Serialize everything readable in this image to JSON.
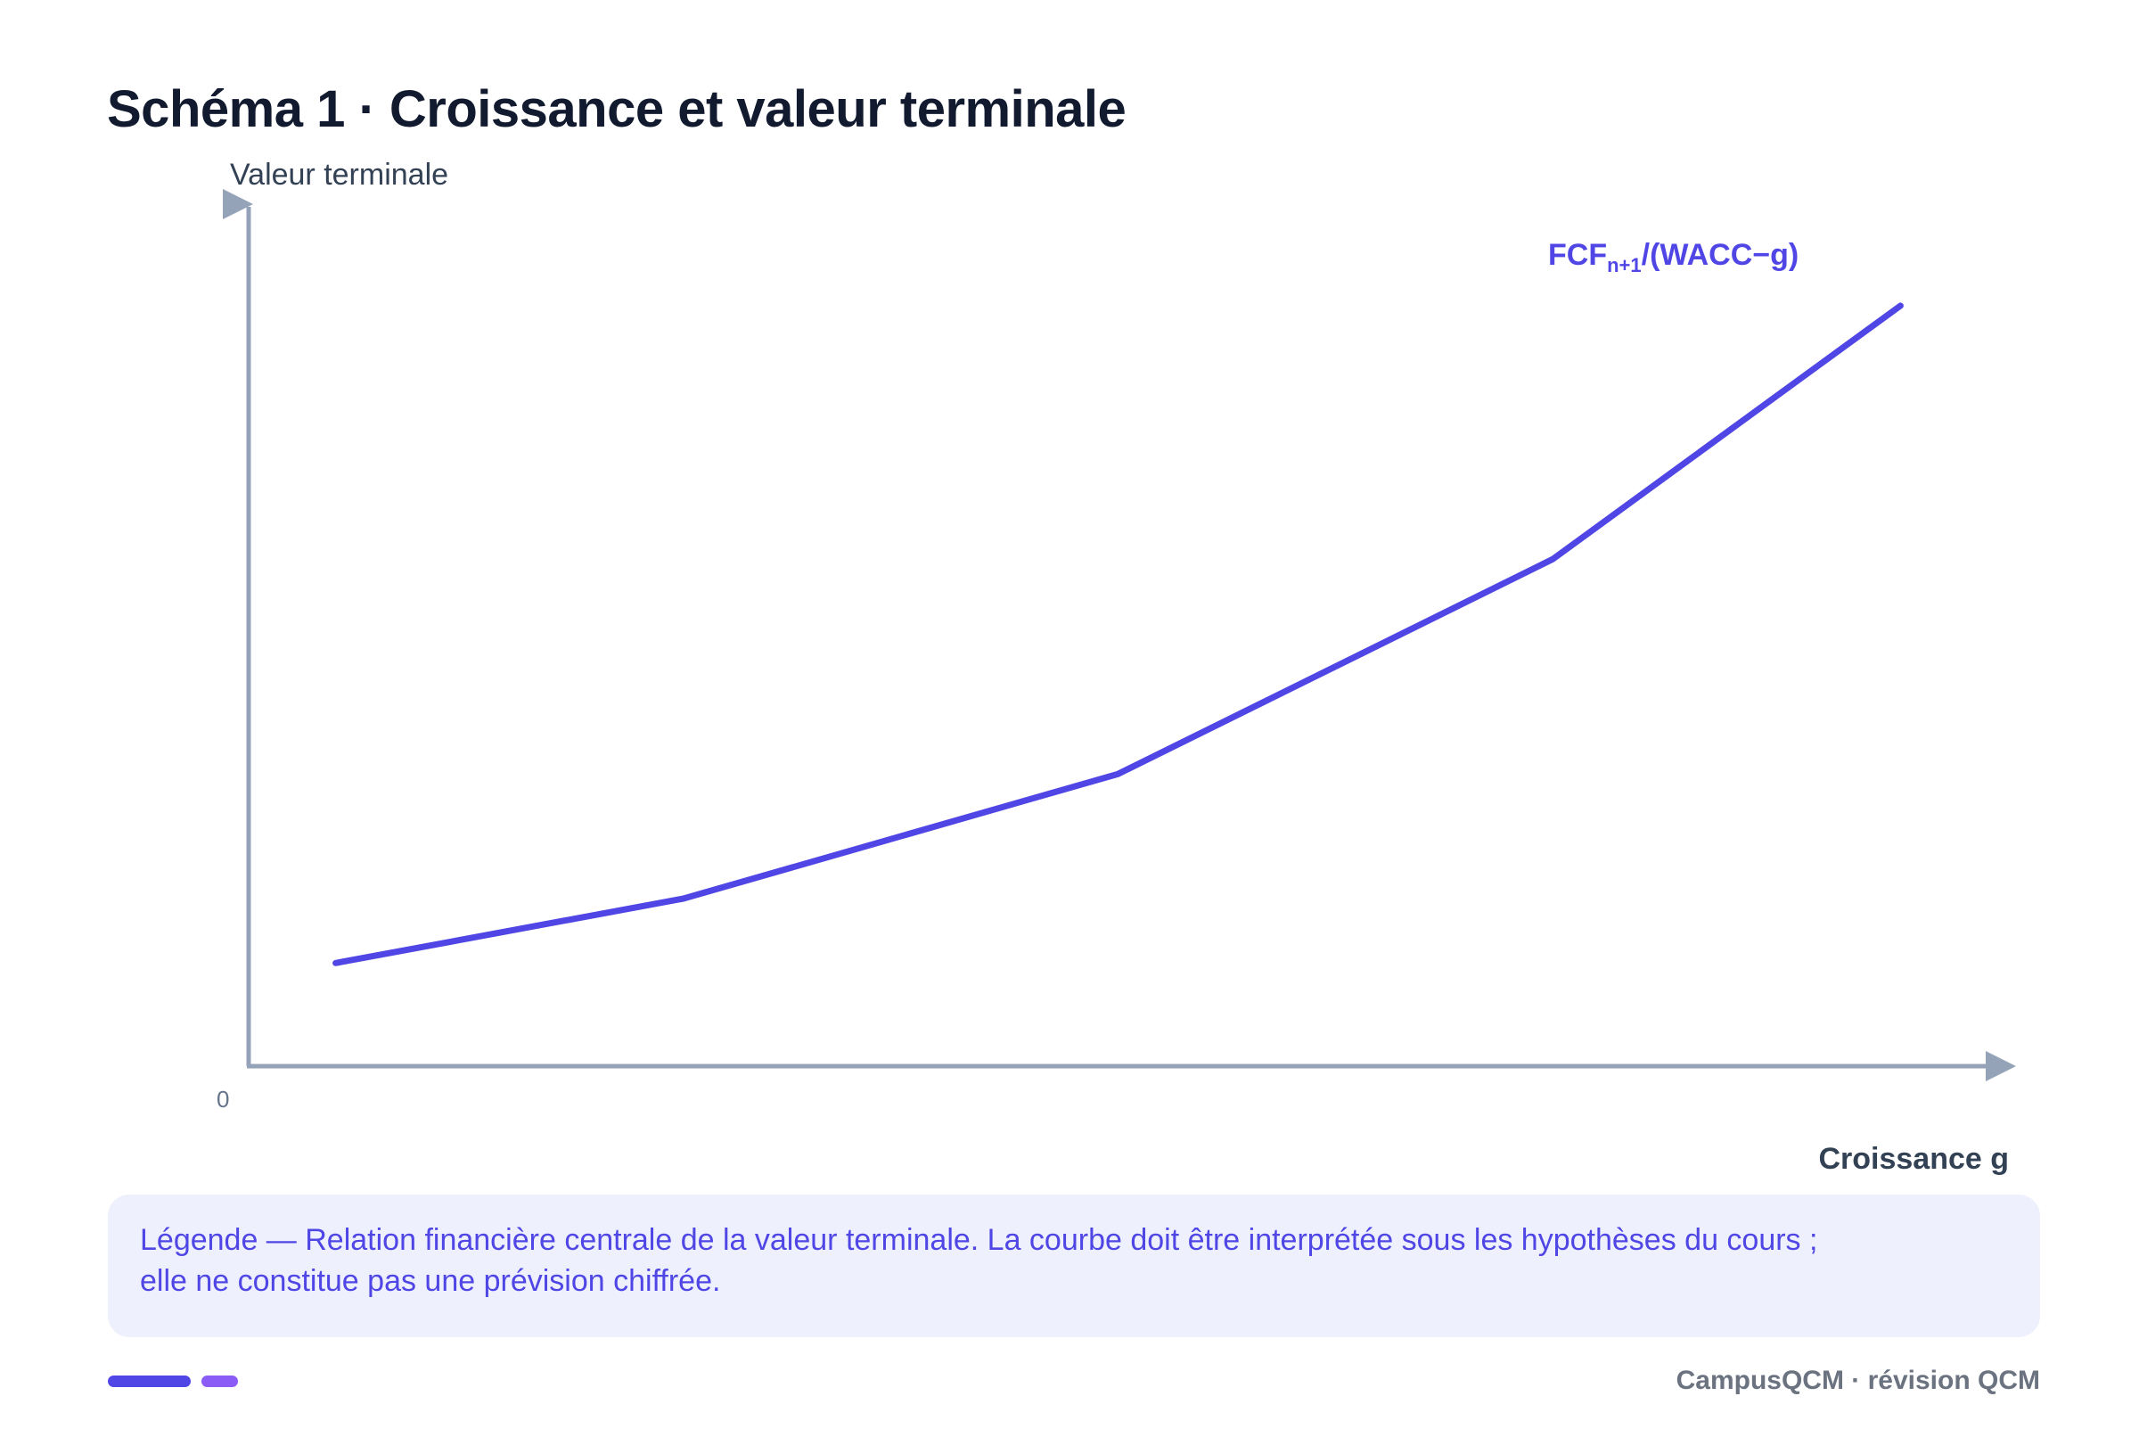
{
  "chart_title": "Schéma 1 · Croissance et valeur terminale",
  "chart_data": {
    "type": "line",
    "title": "Schéma 1 · Croissance et valeur terminale",
    "ylabel": "Valeur terminale",
    "xlabel": "Croissance g",
    "origin_label": "0",
    "x_ticks": [],
    "y_ticks": [],
    "xlim": [
      0,
      10
    ],
    "ylim": [
      0,
      10
    ],
    "series": [
      {
        "name": "FCF(n+1)/(WACC−g)",
        "label_main": "FCF",
        "label_sub": "n+1",
        "label_rest": "/(WACC−g)",
        "color": "#4f46e5",
        "points": [
          {
            "x": 0.5,
            "y": 1.2
          },
          {
            "x": 2.5,
            "y": 1.95
          },
          {
            "x": 5.0,
            "y": 3.4
          },
          {
            "x": 7.5,
            "y": 5.9
          },
          {
            "x": 9.5,
            "y": 8.85
          }
        ]
      }
    ],
    "axis_color": "#94a3b8",
    "grid": false
  },
  "caption": {
    "text": "Légende — Relation financière centrale de la valeur terminale. La courbe doit être interprétée sous les hypothèses du cours ; elle ne constitue pas une prévision chiffrée."
  },
  "footer": {
    "brand": "CampusQCM · révision QCM",
    "bar_colors": [
      "#4f46e5",
      "#8b5cf6"
    ]
  }
}
